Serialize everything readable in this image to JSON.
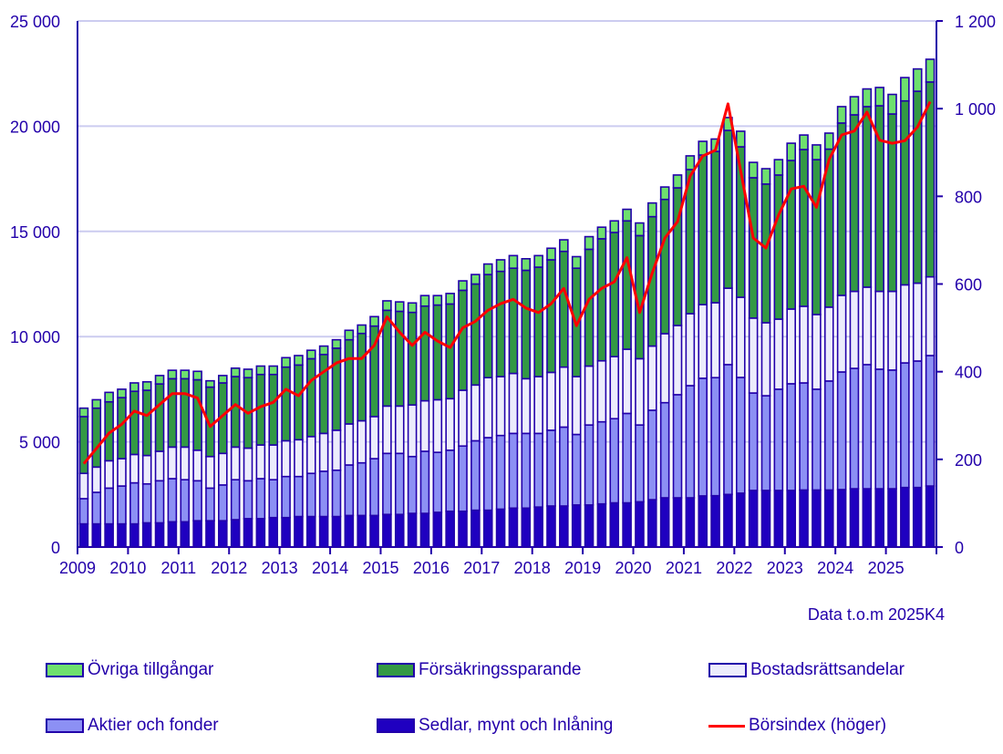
{
  "chart_data": {
    "type": "bar",
    "stacked": true,
    "note": "Data t.o.m 2025K4",
    "x_tick_labels": [
      "2009",
      "2010",
      "2011",
      "2012",
      "2013",
      "2014",
      "2015",
      "2016",
      "2017",
      "2018",
      "2019",
      "2020",
      "2021",
      "2022",
      "2023",
      "2024",
      "2025"
    ],
    "categories": [
      "2009K1",
      "2009K2",
      "2009K3",
      "2009K4",
      "2010K1",
      "2010K2",
      "2010K3",
      "2010K4",
      "2011K1",
      "2011K2",
      "2011K3",
      "2011K4",
      "2012K1",
      "2012K2",
      "2012K3",
      "2012K4",
      "2013K1",
      "2013K2",
      "2013K3",
      "2013K4",
      "2014K1",
      "2014K2",
      "2014K3",
      "2014K4",
      "2015K1",
      "2015K2",
      "2015K3",
      "2015K4",
      "2016K1",
      "2016K2",
      "2016K3",
      "2016K4",
      "2017K1",
      "2017K2",
      "2017K3",
      "2017K4",
      "2018K1",
      "2018K2",
      "2018K3",
      "2018K4",
      "2019K1",
      "2019K2",
      "2019K3",
      "2019K4",
      "2020K1",
      "2020K2",
      "2020K3",
      "2020K4",
      "2021K1",
      "2021K2",
      "2021K3",
      "2021K4",
      "2022K1",
      "2022K2",
      "2022K3",
      "2022K4",
      "2023K1",
      "2023K2",
      "2023K3",
      "2023K4",
      "2024K1",
      "2024K2",
      "2024K3",
      "2024K4",
      "2025K1",
      "2025K2",
      "2025K3",
      "2025K4"
    ],
    "y_left": {
      "range": [
        0,
        25000
      ],
      "ticks": [
        0,
        5000,
        10000,
        15000,
        20000,
        25000
      ],
      "tick_labels": [
        "0",
        "5 000",
        "10 000",
        "15 000",
        "20 000",
        "25 000"
      ],
      "grid": true
    },
    "y_right": {
      "range": [
        0,
        1200
      ],
      "ticks": [
        0,
        200,
        400,
        600,
        800,
        1000,
        1200
      ],
      "tick_labels": [
        "0",
        "200",
        "400",
        "600",
        "800",
        "1 000",
        "1 200"
      ]
    },
    "series": [
      {
        "name": "Sedlar, mynt och Inlåning",
        "color": "#1f00c0",
        "axis": "left",
        "values": [
          1100,
          1100,
          1100,
          1100,
          1100,
          1150,
          1150,
          1200,
          1200,
          1250,
          1250,
          1250,
          1300,
          1350,
          1350,
          1400,
          1400,
          1450,
          1450,
          1450,
          1450,
          1500,
          1500,
          1500,
          1550,
          1550,
          1600,
          1600,
          1650,
          1700,
          1700,
          1750,
          1750,
          1800,
          1850,
          1850,
          1900,
          1950,
          1950,
          2000,
          2000,
          2050,
          2100,
          2100,
          2150,
          2250,
          2340,
          2340,
          2340,
          2430,
          2440,
          2500,
          2560,
          2690,
          2690,
          2690,
          2690,
          2710,
          2710,
          2710,
          2730,
          2770,
          2770,
          2770,
          2770,
          2830,
          2830,
          2900
        ]
      },
      {
        "name": "Aktier och fonder",
        "color": "#8c90f4",
        "axis": "left",
        "values": [
          1200,
          1500,
          1700,
          1800,
          1950,
          1850,
          2000,
          2050,
          2000,
          1900,
          1550,
          1700,
          1900,
          1800,
          1900,
          1800,
          1950,
          1900,
          2050,
          2150,
          2200,
          2400,
          2500,
          2700,
          2900,
          2900,
          2700,
          2950,
          2850,
          2900,
          3100,
          3300,
          3450,
          3500,
          3550,
          3550,
          3500,
          3600,
          3750,
          3350,
          3800,
          3900,
          4000,
          4250,
          3650,
          4250,
          4520,
          4900,
          5330,
          5590,
          5610,
          6170,
          5500,
          4630,
          4500,
          4810,
          5070,
          5090,
          4790,
          5180,
          5590,
          5720,
          5900,
          5680,
          5640,
          5920,
          6010,
          6200
        ]
      },
      {
        "name": "Bostadsrättsandelar",
        "color": "#ececfc",
        "axis": "left",
        "values": [
          1200,
          1200,
          1300,
          1300,
          1350,
          1350,
          1400,
          1500,
          1550,
          1450,
          1500,
          1500,
          1550,
          1550,
          1600,
          1650,
          1700,
          1750,
          1750,
          1800,
          1900,
          1950,
          2000,
          2000,
          2250,
          2250,
          2450,
          2400,
          2500,
          2450,
          2650,
          2650,
          2850,
          2800,
          2850,
          2600,
          2700,
          2750,
          2850,
          2750,
          2800,
          2900,
          2950,
          3050,
          3150,
          3050,
          3280,
          3290,
          3420,
          3500,
          3560,
          3630,
          3810,
          3560,
          3470,
          3330,
          3550,
          3640,
          3550,
          3510,
          3640,
          3660,
          3680,
          3700,
          3740,
          3710,
          3700,
          3740
        ]
      },
      {
        "name": "Försäkringssparande",
        "color": "#339944",
        "axis": "left",
        "values": [
          2700,
          2800,
          2800,
          2900,
          3000,
          3100,
          3200,
          3250,
          3250,
          3350,
          3300,
          3350,
          3350,
          3350,
          3350,
          3350,
          3500,
          3550,
          3700,
          3750,
          3900,
          4000,
          4150,
          4300,
          4550,
          4500,
          4400,
          4500,
          4500,
          4500,
          4750,
          4800,
          4900,
          5000,
          5000,
          5150,
          5200,
          5350,
          5500,
          5150,
          5550,
          5800,
          5900,
          6100,
          5850,
          6150,
          6380,
          6540,
          6850,
          7110,
          7190,
          7500,
          7150,
          6670,
          6590,
          6850,
          7060,
          7450,
          7360,
          7510,
          8190,
          8390,
          8580,
          8820,
          8430,
          8740,
          9120,
          9260
        ]
      },
      {
        "name": "Övriga tillgångar",
        "color": "#6ee06e",
        "axis": "left",
        "values": [
          400,
          400,
          450,
          400,
          400,
          400,
          400,
          400,
          400,
          400,
          300,
          350,
          400,
          400,
          400,
          400,
          450,
          450,
          400,
          400,
          400,
          450,
          400,
          450,
          450,
          450,
          450,
          500,
          450,
          500,
          450,
          450,
          500,
          550,
          600,
          550,
          550,
          550,
          550,
          550,
          600,
          550,
          550,
          550,
          600,
          650,
          590,
          610,
          650,
          650,
          590,
          610,
          740,
          730,
          730,
          730,
          820,
          690,
          700,
          760,
          780,
          860,
          840,
          870,
          930,
          1110,
          1060,
          1080
        ]
      }
    ],
    "line": {
      "name": "Börsindex (höger)",
      "color": "#ff0000",
      "axis": "right",
      "values": [
        190,
        225,
        260,
        280,
        310,
        300,
        325,
        350,
        350,
        340,
        275,
        300,
        325,
        305,
        320,
        330,
        360,
        345,
        380,
        400,
        420,
        430,
        430,
        460,
        525,
        490,
        460,
        490,
        470,
        455,
        500,
        515,
        540,
        555,
        565,
        545,
        535,
        555,
        590,
        505,
        565,
        590,
        605,
        660,
        535,
        625,
        705,
        742,
        846,
        892,
        905,
        1011,
        858,
        705,
        682,
        757,
        817,
        823,
        775,
        884,
        940,
        949,
        992,
        928,
        921,
        927,
        958,
        1016
      ]
    },
    "legend": {
      "placement": "bottom",
      "rows": [
        [
          "Övriga tillgångar",
          "Försäkringssparande",
          "Bostadsrättsandelar"
        ],
        [
          "Aktier och fonder",
          "Sedlar, mynt och Inlåning",
          "Börsindex (höger)"
        ]
      ]
    }
  }
}
